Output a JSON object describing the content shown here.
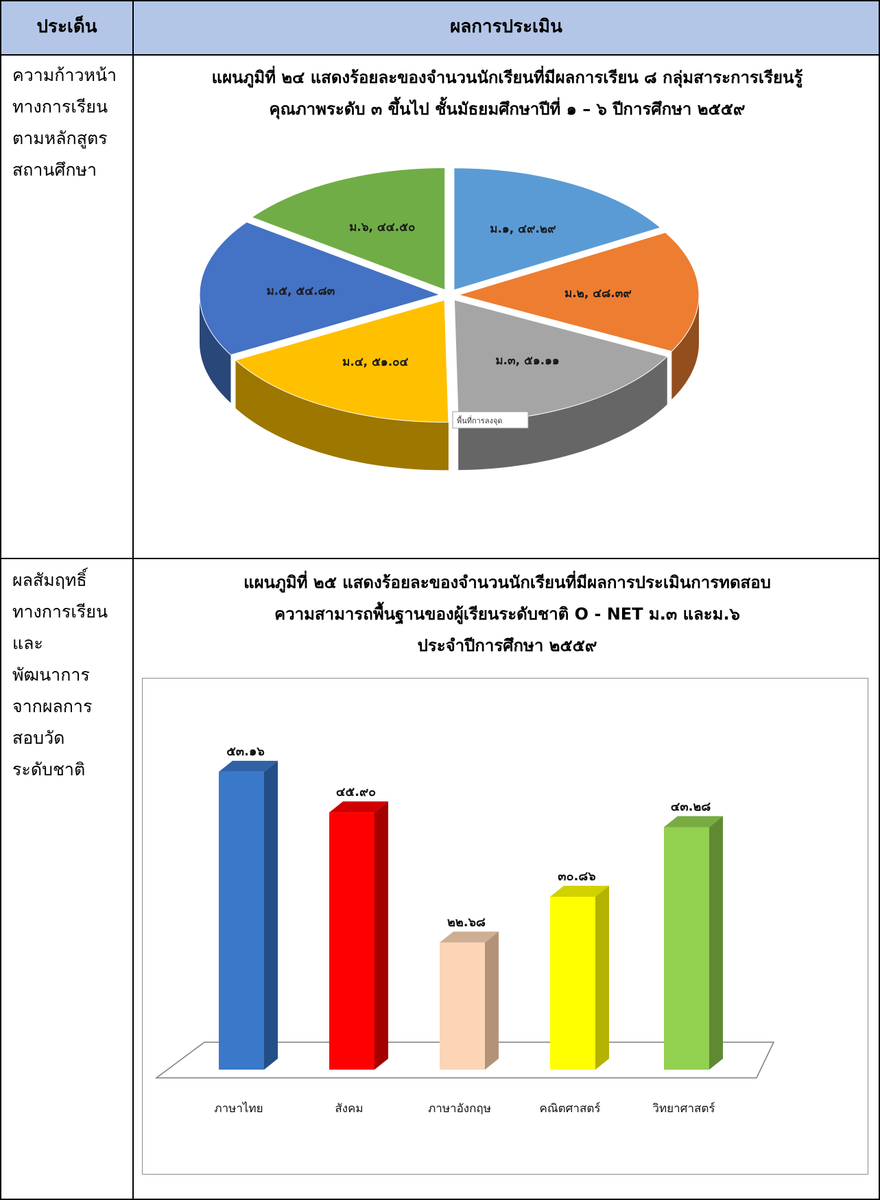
{
  "header": {
    "col1": "ประเด็น",
    "col2": "ผลการประเมิน"
  },
  "rows": [
    {
      "label_lines": [
        "ความก้าวหน้า",
        "ทางการเรียน",
        "ตามหลักสูตร",
        "สถานศึกษา"
      ]
    },
    {
      "label_lines": [
        "ผลสัมฤทธิ์",
        "ทางการเรียน",
        "และ",
        "พัฒนาการ",
        "จากผลการ",
        "สอบวัด",
        "ระดับชาติ"
      ]
    }
  ],
  "charts": {
    "pie_title_lines": [
      "แผนภูมิที่ ๒๔ แสดงร้อยละของจำนวนนักเรียนที่มีผลการเรียน ๘ กลุ่มสาระการเรียนรู้",
      "คุณภาพระดับ ๓ ขึ้นไป ชั้นมัธยมศึกษาปีที่ ๑ – ๖ ปีการศึกษา ๒๕๕๙"
    ],
    "pie_tooltip": "พื้นที่การลงจุด",
    "bar_title_lines": [
      "แผนภูมิที่ ๒๕ แสดงร้อยละของจำนวนนักเรียนที่มีผลการประเมินการทดสอบ",
      "ความสามารถพื้นฐานของผู้เรียนระดับชาติ O - NET ม.๓ และม.๖",
      "ประจำปีการศึกษา ๒๕๕๙"
    ]
  },
  "chart_data": [
    {
      "type": "pie",
      "title": "แผนภูมิที่ ๒๔ แสดงร้อยละของจำนวนนักเรียนที่มีผลการเรียน ๘ กลุ่มสาระการเรียนรู้ คุณภาพระดับ ๓ ขึ้นไป ชั้นมัธยมศึกษาปีที่ ๑ – ๖ ปีการศึกษา ๒๕๕๙",
      "slices": [
        {
          "label": "ม.๑",
          "value": 49.29,
          "display": "ม.๑, ๔๙.๒๙",
          "color": "#5b9bd5"
        },
        {
          "label": "ม.๒",
          "value": 48.39,
          "display": "ม.๒, ๔๘.๓๙",
          "color": "#ed7d31"
        },
        {
          "label": "ม.๓",
          "value": 51.11,
          "display": "ม.๓, ๕๑.๑๑",
          "color": "#a5a5a5"
        },
        {
          "label": "ม.๔",
          "value": 51.04,
          "display": "ม.๔, ๕๑.๐๔",
          "color": "#ffc000"
        },
        {
          "label": "ม.๕",
          "value": 54.83,
          "display": "ม.๕, ๕๔.๘๓",
          "color": "#4472c4"
        },
        {
          "label": "ม.๖",
          "value": 44.5,
          "display": "ม.๖, ๔๔.๕๐",
          "color": "#70ad47"
        }
      ]
    },
    {
      "type": "bar",
      "title": "แผนภูมิที่ ๒๕ แสดงร้อยละของจำนวนนักเรียนที่มีผลการประเมินการทดสอบ ความสามารถพื้นฐานของผู้เรียนระดับชาติ O - NET ม.๓ และม.๖ ประจำปีการศึกษา ๒๕๕๙",
      "categories": [
        "ภาษาไทย",
        "สังคม",
        "ภาษาอังกฤษ",
        "คณิตศาสตร์",
        "วิทยาศาสตร์"
      ],
      "values": [
        53.16,
        45.9,
        22.68,
        30.86,
        43.28
      ],
      "value_labels": [
        "๕๓.๑๖",
        "๔๕.๙๐",
        "๒๒.๖๘",
        "๓๐.๘๖",
        "๔๓.๒๘"
      ],
      "colors": [
        "#3a78c9",
        "#ff0000",
        "#fbd5b5",
        "#ffff00",
        "#92d050"
      ],
      "side_colors": [
        "#244f86",
        "#a40000",
        "#b39378",
        "#b3b300",
        "#5f8a33"
      ]
    }
  ]
}
